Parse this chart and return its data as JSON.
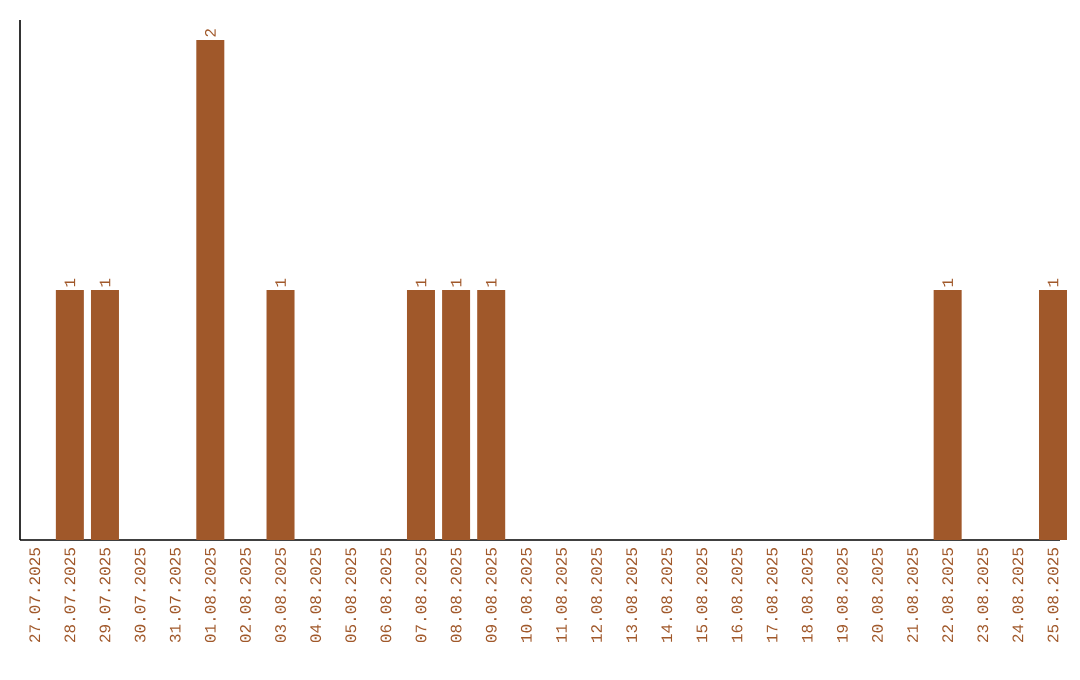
{
  "chart_data": {
    "type": "bar",
    "categories": [
      "27.07.2025",
      "28.07.2025",
      "29.07.2025",
      "30.07.2025",
      "31.07.2025",
      "01.08.2025",
      "02.08.2025",
      "03.08.2025",
      "04.08.2025",
      "05.08.2025",
      "06.08.2025",
      "07.08.2025",
      "08.08.2025",
      "09.08.2025",
      "10.08.2025",
      "11.08.2025",
      "12.08.2025",
      "13.08.2025",
      "14.08.2025",
      "15.08.2025",
      "16.08.2025",
      "17.08.2025",
      "18.08.2025",
      "19.08.2025",
      "20.08.2025",
      "21.08.2025",
      "22.08.2025",
      "23.08.2025",
      "24.08.2025",
      "25.08.2025"
    ],
    "values": [
      0,
      1,
      1,
      0,
      0,
      2,
      0,
      1,
      0,
      0,
      0,
      1,
      1,
      1,
      0,
      0,
      0,
      0,
      0,
      0,
      0,
      0,
      0,
      0,
      0,
      0,
      1,
      0,
      0,
      1
    ],
    "value_labels": [
      null,
      "1",
      "1",
      null,
      null,
      "2",
      null,
      "1",
      null,
      null,
      null,
      "1",
      "1",
      "1",
      null,
      null,
      null,
      null,
      null,
      null,
      null,
      null,
      null,
      null,
      null,
      null,
      "1",
      null,
      null,
      "1"
    ],
    "color": "#a0582a"
  }
}
